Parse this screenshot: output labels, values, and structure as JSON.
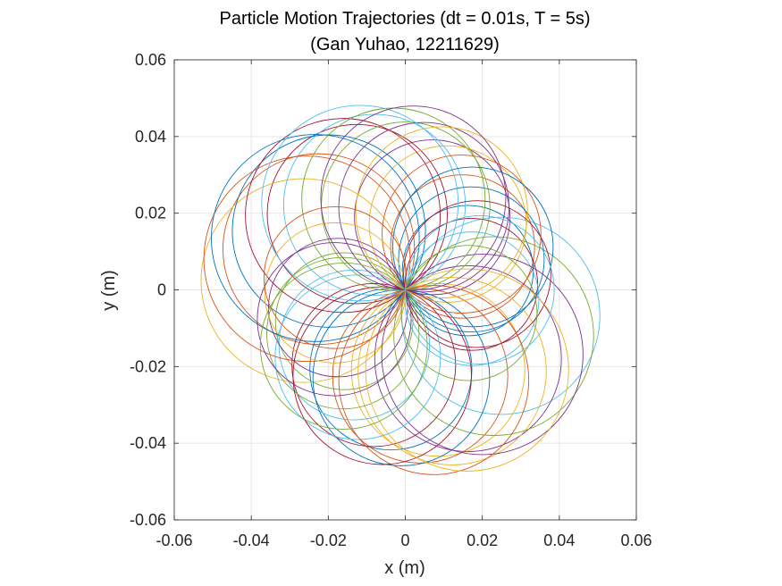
{
  "chart_data": {
    "type": "line",
    "title": "Particle Motion Trajectories (dt = 0.01s, T = 5s)",
    "subtitle": "(Gan Yuhao, 12211629)",
    "xlabel": "x (m)",
    "ylabel": "y (m)",
    "xlim": [
      -0.06,
      0.06
    ],
    "ylim": [
      -0.06,
      0.06
    ],
    "xticks": [
      -0.06,
      -0.04,
      -0.02,
      0,
      0.02,
      0.04,
      0.06
    ],
    "yticks": [
      -0.06,
      -0.04,
      -0.02,
      0,
      0.02,
      0.04,
      0.06
    ],
    "xtick_labels": [
      "-0.06",
      "-0.04",
      "-0.02",
      "0",
      "0.02",
      "0.04",
      "0.06"
    ],
    "ytick_labels": [
      "-0.06",
      "-0.04",
      "-0.02",
      "0",
      "0.02",
      "0.04",
      "0.06"
    ],
    "grid": true,
    "aspect": "equal",
    "series_colors": [
      "#0072BD",
      "#D95319",
      "#EDB120",
      "#7E2F8E",
      "#77AC30",
      "#4DBEEE",
      "#A2142F"
    ],
    "trajectory_shape": "circle through origin",
    "trajectory_count": 48,
    "trajectory_radius_range": [
      0.017,
      0.027
    ]
  }
}
